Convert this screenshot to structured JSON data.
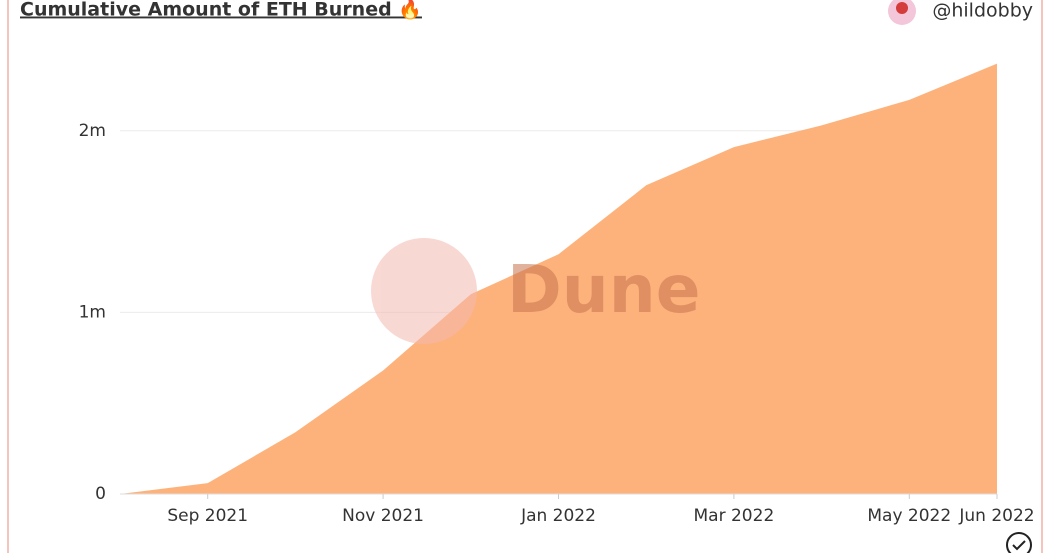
{
  "chart_data": {
    "type": "area",
    "title": "Cumulative Amount of ETH Burned 🔥",
    "author": "@hildobby",
    "watermark": "Dune",
    "x": [
      "2021-08",
      "2021-09",
      "2021-10",
      "2021-11",
      "2021-12",
      "2022-01",
      "2022-02",
      "2022-03",
      "2022-04",
      "2022-05",
      "2022-06"
    ],
    "values": [
      0,
      60000,
      340000,
      680000,
      1100000,
      1320000,
      1700000,
      1910000,
      2030000,
      2170000,
      2370000
    ],
    "color": "#fdb27b",
    "xlim": [
      "2021-08",
      "2022-06"
    ],
    "xticks": [
      {
        "value": "2021-09",
        "label": "Sep 2021"
      },
      {
        "value": "2021-11",
        "label": "Nov 2021"
      },
      {
        "value": "2022-01",
        "label": "Jan 2022"
      },
      {
        "value": "2022-03",
        "label": "Mar 2022"
      },
      {
        "value": "2022-05",
        "label": "May 2022"
      },
      {
        "value": "2022-06",
        "label": "Jun 2022"
      }
    ],
    "ylim": [
      0,
      2500000
    ],
    "yticks": [
      0,
      {
        "value": 1000000,
        "label": "1m"
      },
      {
        "value": 2000000,
        "label": "2m"
      }
    ],
    "grid": true
  }
}
